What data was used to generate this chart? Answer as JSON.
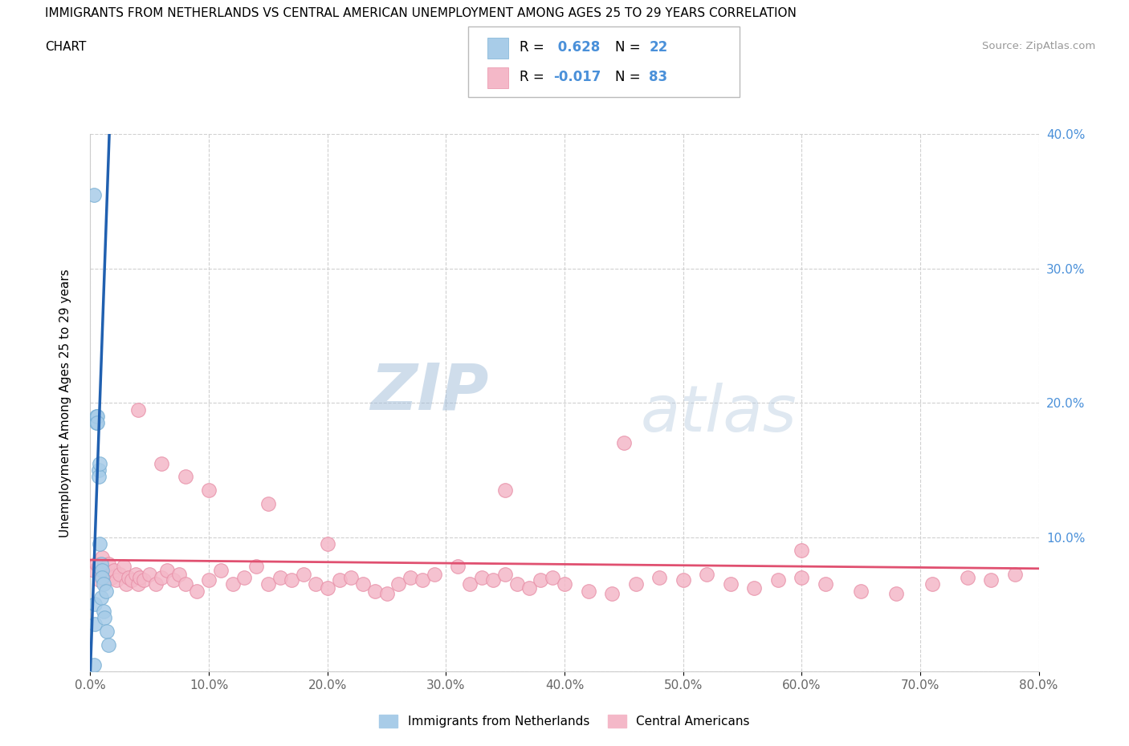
{
  "title_line1": "IMMIGRANTS FROM NETHERLANDS VS CENTRAL AMERICAN UNEMPLOYMENT AMONG AGES 25 TO 29 YEARS CORRELATION",
  "title_line2": "CHART",
  "source_text": "Source: ZipAtlas.com",
  "ylabel": "Unemployment Among Ages 25 to 29 years",
  "xlim": [
    0,
    0.8
  ],
  "ylim": [
    0,
    0.4
  ],
  "xticks": [
    0.0,
    0.1,
    0.2,
    0.3,
    0.4,
    0.5,
    0.6,
    0.7,
    0.8
  ],
  "yticks": [
    0.0,
    0.1,
    0.2,
    0.3,
    0.4
  ],
  "xtick_labels": [
    "0.0%",
    "10.0%",
    "20.0%",
    "30.0%",
    "40.0%",
    "50.0%",
    "60.0%",
    "70.0%",
    "80.0%"
  ],
  "ytick_labels_right": [
    "",
    "10.0%",
    "20.0%",
    "30.0%",
    "40.0%"
  ],
  "blue_color": "#a8cce8",
  "blue_edge_color": "#7ab0d4",
  "pink_color": "#f4b8c8",
  "pink_edge_color": "#e890a8",
  "blue_line_color": "#2060b0",
  "pink_line_color": "#e05070",
  "R_blue": 0.628,
  "N_blue": 22,
  "R_pink": -0.017,
  "N_pink": 83,
  "legend_label_blue": "Immigrants from Netherlands",
  "legend_label_pink": "Central Americans",
  "watermark_zip": "ZIP",
  "watermark_atlas": "atlas",
  "blue_scatter_x": [
    0.003,
    0.004,
    0.004,
    0.005,
    0.005,
    0.006,
    0.006,
    0.007,
    0.007,
    0.008,
    0.008,
    0.009,
    0.009,
    0.01,
    0.01,
    0.011,
    0.011,
    0.012,
    0.013,
    0.014,
    0.015,
    0.003
  ],
  "blue_scatter_y": [
    0.355,
    0.05,
    0.035,
    0.19,
    0.185,
    0.19,
    0.185,
    0.15,
    0.145,
    0.155,
    0.095,
    0.08,
    0.055,
    0.075,
    0.07,
    0.065,
    0.045,
    0.04,
    0.06,
    0.03,
    0.02,
    0.005
  ],
  "pink_scatter_x": [
    0.003,
    0.005,
    0.007,
    0.008,
    0.01,
    0.012,
    0.015,
    0.018,
    0.02,
    0.022,
    0.025,
    0.028,
    0.03,
    0.032,
    0.035,
    0.038,
    0.04,
    0.042,
    0.045,
    0.05,
    0.055,
    0.06,
    0.065,
    0.07,
    0.075,
    0.08,
    0.09,
    0.1,
    0.11,
    0.12,
    0.13,
    0.14,
    0.15,
    0.16,
    0.17,
    0.18,
    0.19,
    0.2,
    0.21,
    0.22,
    0.23,
    0.24,
    0.25,
    0.26,
    0.27,
    0.28,
    0.29,
    0.31,
    0.32,
    0.33,
    0.34,
    0.35,
    0.36,
    0.37,
    0.38,
    0.39,
    0.4,
    0.42,
    0.44,
    0.46,
    0.48,
    0.5,
    0.52,
    0.54,
    0.56,
    0.58,
    0.6,
    0.62,
    0.65,
    0.68,
    0.71,
    0.74,
    0.76,
    0.78,
    0.35,
    0.45,
    0.04,
    0.06,
    0.08,
    0.1,
    0.15,
    0.2,
    0.6
  ],
  "pink_scatter_y": [
    0.075,
    0.08,
    0.078,
    0.068,
    0.085,
    0.075,
    0.08,
    0.07,
    0.075,
    0.068,
    0.072,
    0.078,
    0.065,
    0.07,
    0.068,
    0.072,
    0.065,
    0.07,
    0.068,
    0.072,
    0.065,
    0.07,
    0.075,
    0.068,
    0.072,
    0.065,
    0.06,
    0.068,
    0.075,
    0.065,
    0.07,
    0.078,
    0.065,
    0.07,
    0.068,
    0.072,
    0.065,
    0.062,
    0.068,
    0.07,
    0.065,
    0.06,
    0.058,
    0.065,
    0.07,
    0.068,
    0.072,
    0.078,
    0.065,
    0.07,
    0.068,
    0.072,
    0.065,
    0.062,
    0.068,
    0.07,
    0.065,
    0.06,
    0.058,
    0.065,
    0.07,
    0.068,
    0.072,
    0.065,
    0.062,
    0.068,
    0.07,
    0.065,
    0.06,
    0.058,
    0.065,
    0.07,
    0.068,
    0.072,
    0.135,
    0.17,
    0.195,
    0.155,
    0.145,
    0.135,
    0.125,
    0.095,
    0.09
  ],
  "blue_reg_slope": 25.0,
  "blue_reg_intercept": 0.0,
  "pink_reg_slope": -0.008,
  "pink_reg_intercept": 0.083
}
